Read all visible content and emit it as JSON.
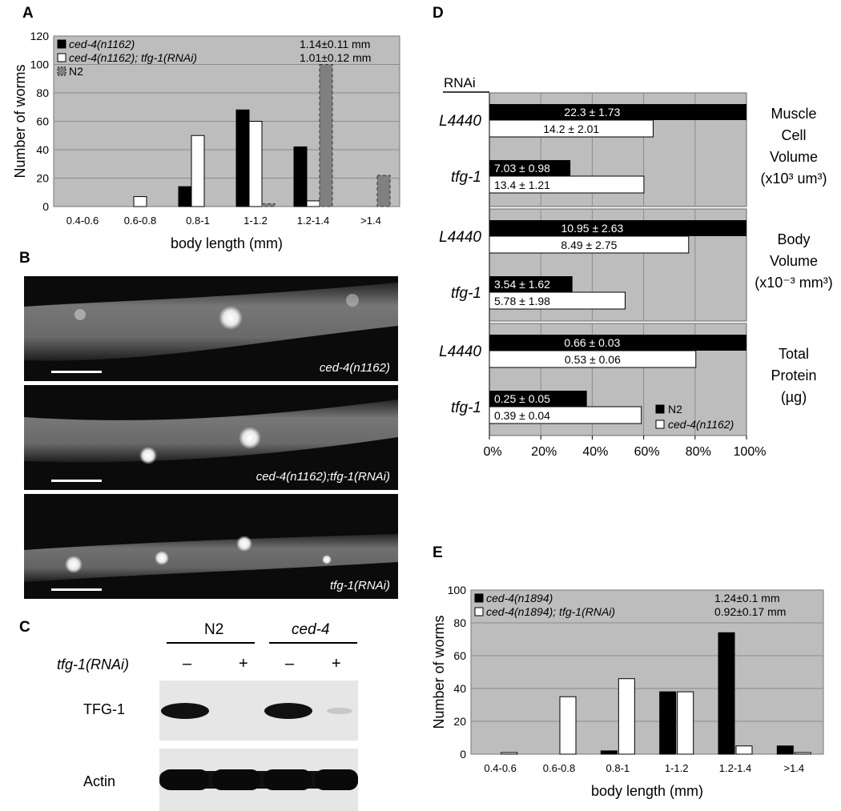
{
  "panel_labels": {
    "a": "A",
    "b": "B",
    "c": "C",
    "d": "D",
    "e": "E"
  },
  "chart_data": [
    {
      "id": "A",
      "type": "bar",
      "categories": [
        "0.4-0.6",
        "0.6-0.8",
        "0.8-1",
        "1-1.2",
        "1.2-1.4",
        ">1.4"
      ],
      "series": [
        {
          "name": "ced-4(n1162)",
          "stat": "1.14±0.11 mm",
          "values": [
            0,
            0,
            14,
            68,
            42,
            0
          ],
          "fill": "#000000"
        },
        {
          "name": "ced-4(n1162); tfg-1(RNAi)",
          "stat": "1.01±0.12 mm",
          "values": [
            0,
            7,
            50,
            60,
            4,
            0
          ],
          "fill": "#ffffff"
        },
        {
          "name": "N2",
          "stat": "",
          "values": [
            0,
            0,
            0,
            2,
            100,
            22
          ],
          "fill": "#808080",
          "dashed": true
        }
      ],
      "xlabel": "body length (mm)",
      "ylabel": "Number of worms",
      "ylim": [
        0,
        120
      ],
      "yticks": [
        0,
        20,
        40,
        60,
        80,
        100,
        120
      ],
      "grid": true,
      "legend": "top-left",
      "plot_bg": "#bdbdbd"
    },
    {
      "id": "D",
      "type": "bar",
      "orientation": "horizontal",
      "header": "RNAi",
      "xticks": [
        "0%",
        "20%",
        "40%",
        "60%",
        "80%",
        "100%"
      ],
      "xlim": [
        0,
        100
      ],
      "groups": [
        {
          "label_lines": [
            "Muscle",
            "Cell",
            "Volume",
            "(x10³ um³)"
          ],
          "rows": [
            {
              "rnai": "L4440",
              "n2": {
                "pct": 100,
                "text": "22.3 ± 1.73"
              },
              "ced4": {
                "pct": 63.7,
                "text": "14.2 ± 2.01"
              }
            },
            {
              "rnai": "tfg-1",
              "n2": {
                "pct": 31.5,
                "text": "7.03 ± 0.98"
              },
              "ced4": {
                "pct": 60.1,
                "text": "13.4 ± 1.21"
              }
            }
          ]
        },
        {
          "label_lines": [
            "Body",
            "Volume",
            "(x10⁻³ mm³)"
          ],
          "rows": [
            {
              "rnai": "L4440",
              "n2": {
                "pct": 100,
                "text": "10.95 ± 2.63"
              },
              "ced4": {
                "pct": 77.5,
                "text": "8.49 ± 2.75"
              }
            },
            {
              "rnai": "tfg-1",
              "n2": {
                "pct": 32.3,
                "text": "3.54 ± 1.62"
              },
              "ced4": {
                "pct": 52.8,
                "text": "5.78 ± 1.98"
              }
            }
          ]
        },
        {
          "label_lines": [
            "Total",
            "Protein",
            "(µg)"
          ],
          "rows": [
            {
              "rnai": "L4440",
              "n2": {
                "pct": 100,
                "text": "0.66 ± 0.03"
              },
              "ced4": {
                "pct": 80.3,
                "text": "0.53 ± 0.06"
              }
            },
            {
              "rnai": "tfg-1",
              "n2": {
                "pct": 37.9,
                "text": "0.25 ± 0.05"
              },
              "ced4": {
                "pct": 59.1,
                "text": "0.39 ± 0.04"
              }
            }
          ]
        }
      ],
      "legend": [
        {
          "name": "N2",
          "fill": "#000000"
        },
        {
          "name": "ced-4(n1162)",
          "fill": "#ffffff"
        }
      ],
      "plot_bg": "#bdbdbd"
    },
    {
      "id": "E",
      "type": "bar",
      "categories": [
        "0.4-0.6",
        "0.6-0.8",
        "0.8-1",
        "1-1.2",
        "1.2-1.4",
        ">1.4"
      ],
      "series": [
        {
          "name": "ced-4(n1894)",
          "stat": "1.24±0.1   mm",
          "values": [
            0,
            0,
            2,
            38,
            74,
            5
          ],
          "fill": "#000000"
        },
        {
          "name": "ced-4(n1894); tfg-1(RNAi)",
          "stat": "0.92±0.17 mm",
          "values": [
            1,
            35,
            46,
            38,
            5,
            1
          ],
          "fill": "#ffffff"
        }
      ],
      "xlabel": "body length (mm)",
      "ylabel": "Number of worms",
      "ylim": [
        0,
        100
      ],
      "yticks": [
        0,
        20,
        40,
        60,
        80,
        100
      ],
      "grid": true,
      "legend": "top-left",
      "plot_bg": "#bdbdbd"
    }
  ],
  "panel_b": {
    "images": [
      {
        "label": "ced-4(n1162)"
      },
      {
        "label": "ced-4(n1162);tfg-1(RNAi)"
      },
      {
        "label": "tfg-1(RNAi)"
      }
    ]
  },
  "panel_c": {
    "groups": [
      "N2",
      "ced-4"
    ],
    "row_label": "tfg-1(RNAi)",
    "signs": [
      "–",
      "+",
      "–",
      "+"
    ],
    "bands": [
      {
        "label": "TFG-1",
        "intensities": [
          1.0,
          0,
          1.0,
          0.05
        ]
      },
      {
        "label": "Actin",
        "intensities": [
          1.0,
          1.0,
          1.0,
          1.0
        ]
      }
    ]
  }
}
